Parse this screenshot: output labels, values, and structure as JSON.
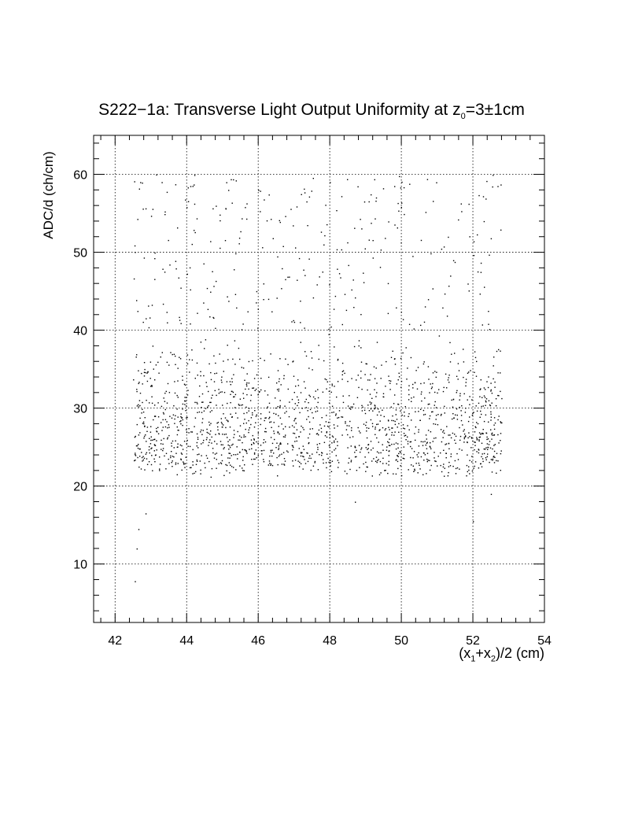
{
  "chart_data": {
    "type": "scatter",
    "title_main": "S222−1a",
    "title_rest": ": Transverse Light Output Uniformity at z",
    "title_sub": "0",
    "title_tail": "=3±1cm",
    "xlabel_a": "(x",
    "xlabel_sub1": "1",
    "xlabel_b": "+x",
    "xlabel_sub2": "2",
    "xlabel_c": ")/2 (cm)",
    "ylabel": "ADC/d (ch/cm)",
    "xlim": [
      41.4,
      54.0
    ],
    "ylim": [
      2.5,
      65.0
    ],
    "x_ticks": [
      "42",
      "44",
      "46",
      "48",
      "50",
      "52",
      "54"
    ],
    "y_ticks": [
      "10",
      "20",
      "30",
      "40",
      "50",
      "60"
    ],
    "grid": true,
    "distribution": {
      "x_range": [
        42.5,
        52.8
      ],
      "core_y_range": [
        21,
        40
      ],
      "core_y_mode": 28,
      "sparse_y_range": [
        40,
        60
      ],
      "outlier_points": [
        [
          42.55,
          7.8
        ],
        [
          42.6,
          12.0
        ],
        [
          42.65,
          14.5
        ],
        [
          42.85,
          16.5
        ],
        [
          52.0,
          15.5
        ],
        [
          52.5,
          19.0
        ],
        [
          48.7,
          18.0
        ],
        [
          42.7,
          59.0
        ],
        [
          43.3,
          59.0
        ],
        [
          48.0,
          59.0
        ],
        [
          49.8,
          58.5
        ],
        [
          46.0,
          58.0
        ],
        [
          51.3,
          52.0
        ],
        [
          52.3,
          54.0
        ],
        [
          44.1,
          58.5
        ]
      ],
      "point_count": 1900
    }
  }
}
